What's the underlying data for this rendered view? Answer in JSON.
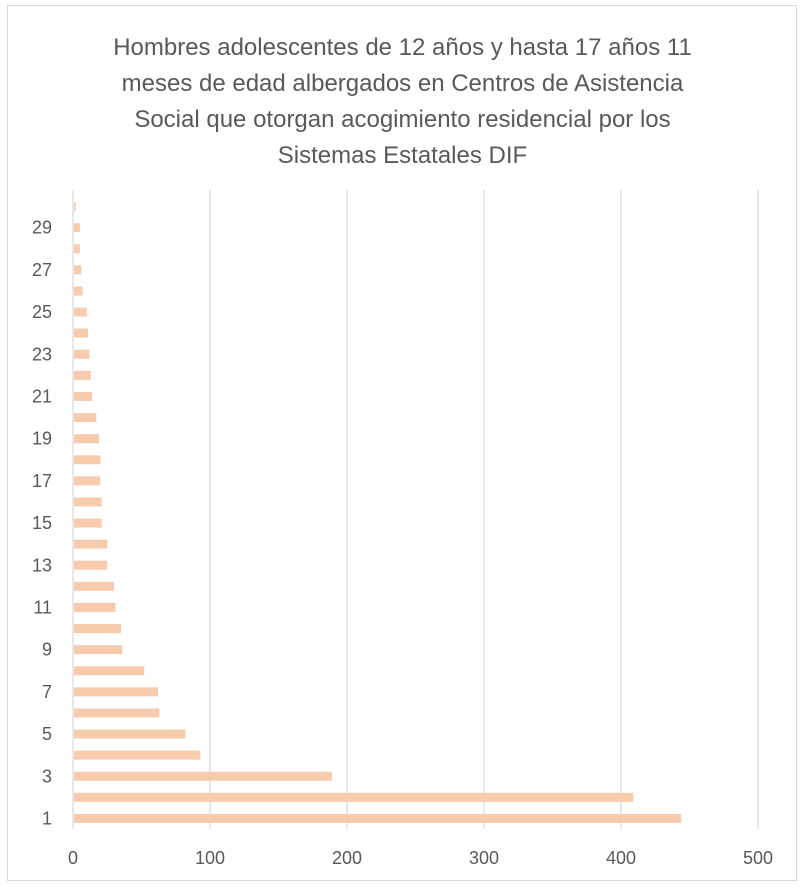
{
  "chart_data": {
    "type": "bar",
    "orientation": "horizontal",
    "title": "Hombres adolescentes de 12 años y hasta 17 años 11\nmeses de edad albergados en Centros de Asistencia\nSocial que otorgan acogimiento residencial por los\nSistemas Estatales DIF",
    "xlabel": "",
    "ylabel": "",
    "categories": [
      "1",
      "2",
      "3",
      "4",
      "5",
      "6",
      "7",
      "8",
      "9",
      "10",
      "11",
      "12",
      "13",
      "14",
      "15",
      "16",
      "17",
      "18",
      "19",
      "20",
      "21",
      "22",
      "23",
      "24",
      "25",
      "26",
      "27",
      "28",
      "29",
      "30"
    ],
    "values": [
      444,
      409,
      189,
      93,
      82,
      63,
      62,
      52,
      36,
      35,
      31,
      30,
      25,
      25,
      21,
      21,
      20,
      20,
      19,
      17,
      14,
      13,
      12,
      11,
      10,
      7,
      6,
      5,
      5,
      2
    ],
    "x_ticks": [
      "0",
      "100",
      "200",
      "300",
      "400",
      "500"
    ],
    "y_tick_labels_shown": [
      "1",
      "3",
      "5",
      "7",
      "9",
      "11",
      "13",
      "15",
      "17",
      "19",
      "21",
      "23",
      "25",
      "27",
      "29"
    ],
    "xlim": [
      0,
      500
    ],
    "grid": "vertical",
    "legend": "none",
    "bar_color": "#F8CBAD",
    "grid_color": "#d9d9d9",
    "text_color": "#595959"
  }
}
